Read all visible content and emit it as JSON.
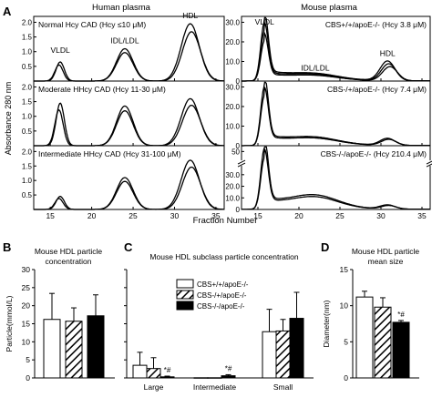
{
  "figure": {
    "panel_letters": [
      "A",
      "B",
      "C",
      "D"
    ],
    "human_title": "Human plasma",
    "mouse_title": "Mouse plasma",
    "y_axis_label": "Absorbance 280 nm",
    "x_axis_label": "Fraction Number"
  },
  "chart_data": [
    {
      "id": "A-human-normal",
      "type": "line",
      "label": "Normal Hcy CAD (Hcy ≤10 μM)",
      "annotations": [
        "VLDL",
        "IDL/LDL",
        "HDL"
      ],
      "xlim": [
        13,
        36
      ],
      "ylim": [
        0,
        2.2
      ],
      "x_ticks": [
        15,
        20,
        25,
        30,
        35
      ],
      "y_ticks": [
        0.5,
        1.0,
        1.5,
        2.0
      ],
      "y_tick_labels": [
        "0.5",
        "1.0",
        "1.5",
        "2.0"
      ],
      "peaks": [
        {
          "x": 16.2,
          "y": 0.65
        },
        {
          "x": 24,
          "y": 1.1
        },
        {
          "x": 31.9,
          "y": 1.95
        }
      ],
      "n_traces": 2
    },
    {
      "id": "A-human-moderate",
      "type": "line",
      "label": "Moderate HHcy CAD (Hcy 11-30 μM)",
      "xlim": [
        13,
        36
      ],
      "ylim": [
        0,
        2.2
      ],
      "x_ticks": [
        15,
        20,
        25,
        30,
        35
      ],
      "y_ticks": [
        0.5,
        1.0,
        1.5,
        2.0
      ],
      "y_tick_labels": [
        "0.5",
        "1.0",
        "1.5",
        "2.0"
      ],
      "peaks": [
        {
          "x": 16.2,
          "y": 1.45
        },
        {
          "x": 24,
          "y": 1.35
        },
        {
          "x": 31.9,
          "y": 1.6
        }
      ],
      "n_traces": 2
    },
    {
      "id": "A-human-intermediate",
      "type": "line",
      "label": "Intermediate HHcy CAD (Hcy 31-100 μM)",
      "xlim": [
        13,
        36
      ],
      "ylim": [
        0,
        2.2
      ],
      "x_ticks": [
        15,
        20,
        25,
        30,
        35
      ],
      "y_ticks": [
        0.5,
        1.0,
        1.5,
        2.0
      ],
      "y_tick_labels": [
        "0.5",
        "1.0",
        "1.5",
        "2.0"
      ],
      "x_tick_labels": [
        "15",
        "20",
        "25",
        "30",
        "35"
      ],
      "peaks": [
        {
          "x": 16.2,
          "y": 0.45
        },
        {
          "x": 24,
          "y": 1.1
        },
        {
          "x": 31.9,
          "y": 1.7
        }
      ],
      "n_traces": 2
    },
    {
      "id": "A-mouse-wt",
      "type": "line",
      "label": "CBS+/+/apoE-/- (Hcy 3.8 μM)",
      "annotations": [
        "VLDL",
        "IDL/LDL",
        "HDL"
      ],
      "xlim": [
        13,
        36
      ],
      "ylim": [
        0,
        33
      ],
      "x_ticks": [
        15,
        20,
        25,
        30,
        35
      ],
      "y_ticks": [
        0,
        10,
        20,
        30
      ],
      "y_tick_labels": [
        "0",
        "10.0",
        "20.0",
        "30.0"
      ],
      "peaks": [
        {
          "x": 15.8,
          "y": 30
        },
        {
          "x": 22,
          "y": 2.5
        },
        {
          "x": 30.8,
          "y": 10
        }
      ],
      "n_traces": 3
    },
    {
      "id": "A-mouse-het",
      "type": "line",
      "label": "CBS-/+/apoE-/- (Hcy 7.4 μM)",
      "xlim": [
        13,
        36
      ],
      "ylim": [
        0,
        33
      ],
      "x_ticks": [
        15,
        20,
        25,
        30,
        35
      ],
      "y_ticks": [
        0,
        10,
        20,
        30
      ],
      "y_tick_labels": [
        "0",
        "10.0",
        "20.0",
        "30.0"
      ],
      "peaks": [
        {
          "x": 15.8,
          "y": 30
        },
        {
          "x": 22,
          "y": 3
        },
        {
          "x": 30.8,
          "y": 3.5
        }
      ],
      "n_traces": 2
    },
    {
      "id": "A-mouse-ko",
      "type": "line",
      "label": "CBS-/-/apoE-/- (Hcy 210.4 μM)",
      "xlim": [
        13,
        36
      ],
      "ylim": [
        0,
        55
      ],
      "x_ticks": [
        15,
        20,
        25,
        30,
        35
      ],
      "y_ticks": [
        0,
        10,
        20,
        30,
        50
      ],
      "y_tick_labels": [
        "0",
        "10.0",
        "20.0",
        "30.0",
        "50"
      ],
      "x_tick_labels": [
        "15",
        "20",
        "25",
        "30",
        "35"
      ],
      "peaks": [
        {
          "x": 15.8,
          "y": 52
        },
        {
          "x": 22,
          "y": 10
        },
        {
          "x": 30.8,
          "y": 3.5
        }
      ],
      "n_traces": 2
    },
    {
      "id": "B",
      "type": "bar",
      "title": "Mouse HDL particle concentration",
      "ylabel": "Particle(mmol/L)",
      "ylim": [
        0,
        30
      ],
      "y_ticks": [
        0,
        5,
        10,
        15,
        20,
        25,
        30
      ],
      "y_tick_labels": [
        "0",
        "5",
        "10",
        "15",
        "20",
        "25",
        "30"
      ],
      "values": [
        16.2,
        15.7,
        17.2
      ],
      "errors": [
        7.2,
        3.7,
        5.8
      ]
    },
    {
      "id": "C",
      "type": "bar",
      "title": "Mouse HDL subclass particle concentration",
      "categories": [
        "Large",
        "Intermediate",
        "Small"
      ],
      "ylim": [
        0,
        30
      ],
      "y_ticks": [
        0,
        5,
        10,
        15,
        20,
        25,
        30
      ],
      "legend": [
        "CBS+/+/apoE-/-",
        "CBS-/+/apoE-/-",
        "CBS-/-/apoE-/-"
      ],
      "series": [
        {
          "name": "CBS+/+/apoE-/-",
          "values": [
            3.5,
            0.05,
            12.8
          ],
          "errors": [
            3.6,
            0,
            6.2
          ]
        },
        {
          "name": "CBS-/+/apoE-/-",
          "values": [
            2.6,
            0.05,
            13.0
          ],
          "errors": [
            3.0,
            0,
            3.2
          ]
        },
        {
          "name": "CBS-/-/apoE-/-",
          "values": [
            0.3,
            0.6,
            16.5
          ],
          "errors": [
            0.2,
            0.3,
            7.2
          ]
        }
      ],
      "annotations": [
        "*#",
        "*#"
      ]
    },
    {
      "id": "D",
      "type": "bar",
      "title": "Mouse HDL particle mean size",
      "ylabel": "Diameter(nm)",
      "ylim": [
        0,
        15
      ],
      "y_ticks": [
        0,
        5,
        10,
        15
      ],
      "y_tick_labels": [
        "0",
        "5",
        "10",
        "15"
      ],
      "values": [
        11.2,
        9.8,
        7.7
      ],
      "errors": [
        0.8,
        1.3,
        0.25
      ],
      "annotations": [
        "*#"
      ]
    }
  ]
}
